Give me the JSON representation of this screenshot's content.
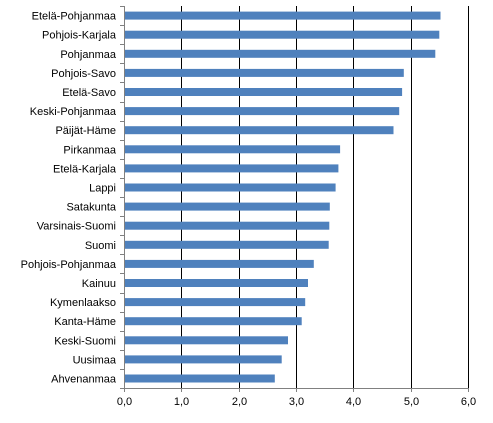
{
  "chart_data": {
    "type": "bar",
    "orientation": "horizontal",
    "categories": [
      "Etelä-Pohjanmaa",
      "Pohjois-Karjala",
      "Pohjanmaa",
      "Pohjois-Savo",
      "Etelä-Savo",
      "Keski-Pohjanmaa",
      "Päijät-Häme",
      "Pirkanmaa",
      "Etelä-Karjala",
      "Lappi",
      "Satakunta",
      "Varsinais-Suomi",
      "Suomi",
      "Pohjois-Pohjanmaa",
      "Kainuu",
      "Kymenlaakso",
      "Kanta-Häme",
      "Keski-Suomi",
      "Uusimaa",
      "Ahvenanmaa"
    ],
    "values": [
      5.52,
      5.5,
      5.43,
      4.88,
      4.85,
      4.8,
      4.7,
      3.77,
      3.74,
      3.69,
      3.59,
      3.58,
      3.57,
      3.31,
      3.21,
      3.16,
      3.1,
      2.86,
      2.75,
      2.63
    ],
    "title": "",
    "xlabel": "",
    "ylabel": "",
    "xlim": [
      0,
      6
    ],
    "x_ticks": [
      "0,0",
      "1,0",
      "2,0",
      "3,0",
      "4,0",
      "5,0",
      "6,0"
    ],
    "grid": "vertical",
    "legend": "none",
    "bar_color": "#4f81bd",
    "grid_color": "#000000",
    "axis_color": "#808080"
  }
}
